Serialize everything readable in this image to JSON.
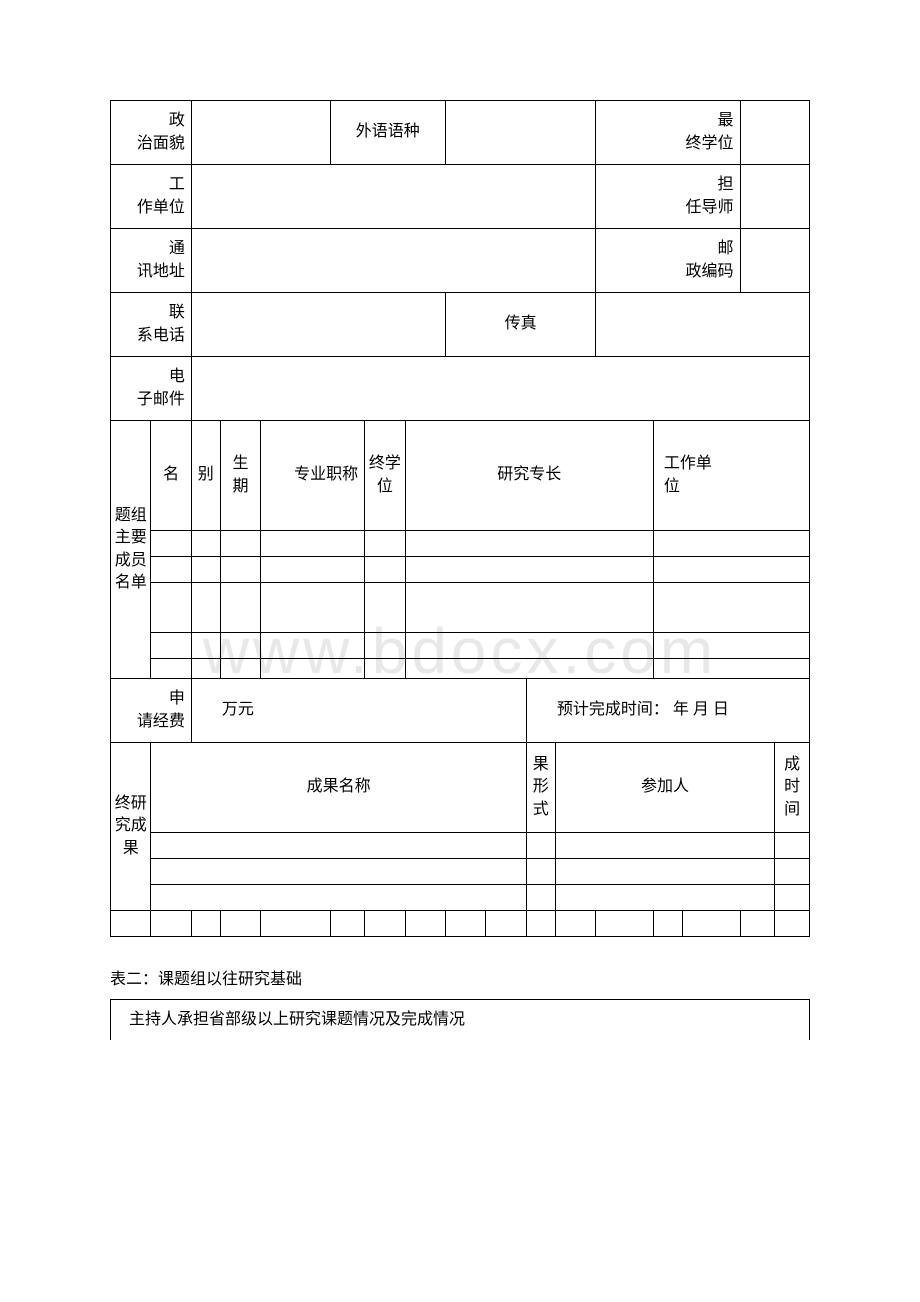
{
  "table1": {
    "political": "政\n治面貌",
    "foreign_lang": "外语语种",
    "final_degree": "最\n终学位",
    "work_unit": "工\n作单位",
    "supervisor": "担\n任导师",
    "address": "通\n讯地址",
    "postcode": "邮\n政编码",
    "phone": "联\n系电话",
    "fax": "传真",
    "email": "电\n子邮件",
    "group_header": "题组主要成员名单",
    "col_name": "名",
    "col_gender": "别",
    "col_birth": "生\n期",
    "col_title": "专业职称",
    "col_degree": "终学位",
    "col_specialty": "研究专长",
    "col_workunit": "工作单\n位",
    "fee_label": "申\n请经费",
    "fee_value": "万元",
    "completion_label": "预计完成时间：    年  月 日",
    "final_result_header": "终研究成果",
    "result_name": "成果名称",
    "result_form": "果形式",
    "participants": "参加人",
    "result_time": "成时间"
  },
  "section2_title": "表二：课题组以往研究基础",
  "table2": {
    "header": "主持人承担省部级以上研究课题情况及完成情况"
  },
  "watermark": "www.bdocx.com"
}
